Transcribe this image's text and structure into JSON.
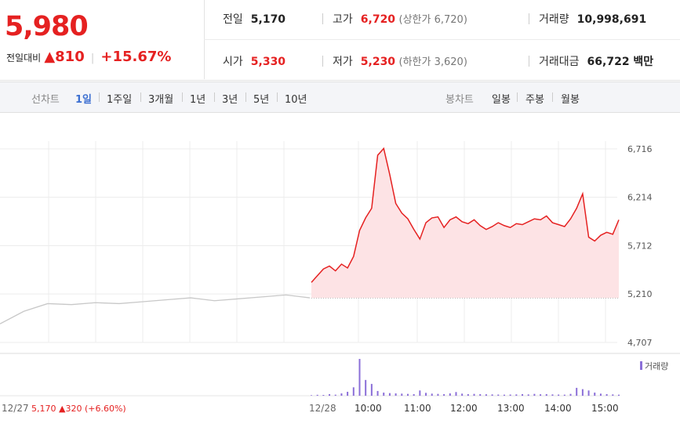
{
  "quote": {
    "price": "5,980",
    "change_label": "전일대비",
    "change_symbol": "▲",
    "change_value": "810",
    "change_pct": "+15.67%"
  },
  "stats": {
    "prev_close": {
      "label": "전일",
      "value": "5,170"
    },
    "open": {
      "label": "시가",
      "value": "5,330"
    },
    "high": {
      "label": "고가",
      "value": "6,720",
      "limit_text": "(상한가 6,720)"
    },
    "low": {
      "label": "저가",
      "value": "5,230",
      "limit_text": "(하한가 3,620)"
    },
    "volume": {
      "label": "거래량",
      "value": "10,998,691"
    },
    "amount": {
      "label": "거래대금",
      "value": "66,722 백만"
    }
  },
  "line_tabs": {
    "label": "선차트",
    "items": [
      "1일",
      "1주일",
      "3개월",
      "1년",
      "3년",
      "5년",
      "10년"
    ],
    "active": "1일"
  },
  "candle_tabs": {
    "label": "봉차트",
    "items": [
      "일봉",
      "주봉",
      "월봉"
    ]
  },
  "prev_day": {
    "date": "12/27",
    "close": "5,170",
    "change": "▲320",
    "pct": "(+6.60%)"
  },
  "colors": {
    "up": "#e52121",
    "area": "#fde3e5",
    "prev_line": "#c8c8c8",
    "volume": "#8b6fd8",
    "grid": "#ececec",
    "active_tab": "#3c6fd1"
  },
  "chart_data": {
    "type": "line",
    "y_ticks": [
      4707,
      5210,
      5712,
      6214,
      6716
    ],
    "y_tick_labels": [
      "4,707",
      "5,210",
      "5,712",
      "6,214",
      "6,716"
    ],
    "x_tick_labels": [
      "12/27",
      "12/28",
      "10:00",
      "11:00",
      "12:00",
      "13:00",
      "14:00",
      "15:00"
    ],
    "ylim": [
      4707,
      6716
    ],
    "baseline": 5170,
    "volume_legend": "거래량",
    "series": [
      {
        "x": [
          "12/27 09:00",
          "12/27 09:30",
          "12/27 10:00",
          "12/27 10:30",
          "12/27 11:00",
          "12/27 11:30",
          "12/27 12:00",
          "12/27 12:30",
          "12/27 13:00",
          "12/27 13:30",
          "12/27 14:00",
          "12/27 14:30",
          "12/27 15:00",
          "12/27 15:30"
        ],
        "values": [
          4900,
          5030,
          5110,
          5100,
          5120,
          5110,
          5130,
          5150,
          5170,
          5140,
          5160,
          5180,
          5200,
          5170
        ]
      },
      {
        "x": [
          "09:00",
          "09:05",
          "09:10",
          "09:15",
          "09:20",
          "09:25",
          "09:30",
          "09:35",
          "09:40",
          "09:45",
          "09:50",
          "09:55",
          "10:00",
          "10:05",
          "10:10",
          "10:15",
          "10:20",
          "10:25",
          "10:30",
          "10:40",
          "10:50",
          "11:00",
          "11:10",
          "11:20",
          "11:30",
          "11:40",
          "11:50",
          "12:00",
          "12:10",
          "12:20",
          "12:30",
          "12:40",
          "12:50",
          "13:00",
          "13:10",
          "13:20",
          "13:30",
          "13:40",
          "13:50",
          "14:00",
          "14:10",
          "14:20",
          "14:30",
          "14:40",
          "14:50",
          "15:00",
          "15:05",
          "15:10",
          "15:15",
          "15:20",
          "15:25",
          "15:30"
        ],
        "values": [
          5330,
          5400,
          5470,
          5500,
          5450,
          5520,
          5480,
          5600,
          5870,
          6000,
          6100,
          6650,
          6720,
          6450,
          6150,
          6050,
          5990,
          5880,
          5780,
          5950,
          6000,
          6010,
          5900,
          5980,
          6010,
          5960,
          5940,
          5980,
          5920,
          5880,
          5910,
          5950,
          5920,
          5900,
          5940,
          5930,
          5960,
          5990,
          5980,
          6020,
          5950,
          5930,
          5910,
          5990,
          6100,
          6250,
          5800,
          5760,
          5820,
          5850,
          5830,
          5980
        ]
      }
    ],
    "volume": [
      20,
      35,
      30,
      60,
      40,
      90,
      150,
      320,
      1400,
      600,
      450,
      180,
      120,
      100,
      90,
      80,
      70,
      60,
      200,
      110,
      80,
      70,
      60,
      90,
      140,
      80,
      60,
      70,
      60,
      55,
      50,
      45,
      40,
      45,
      50,
      60,
      50,
      70,
      55,
      60,
      50,
      45,
      40,
      70,
      300,
      250,
      200,
      120,
      80,
      60,
      50,
      40
    ]
  }
}
